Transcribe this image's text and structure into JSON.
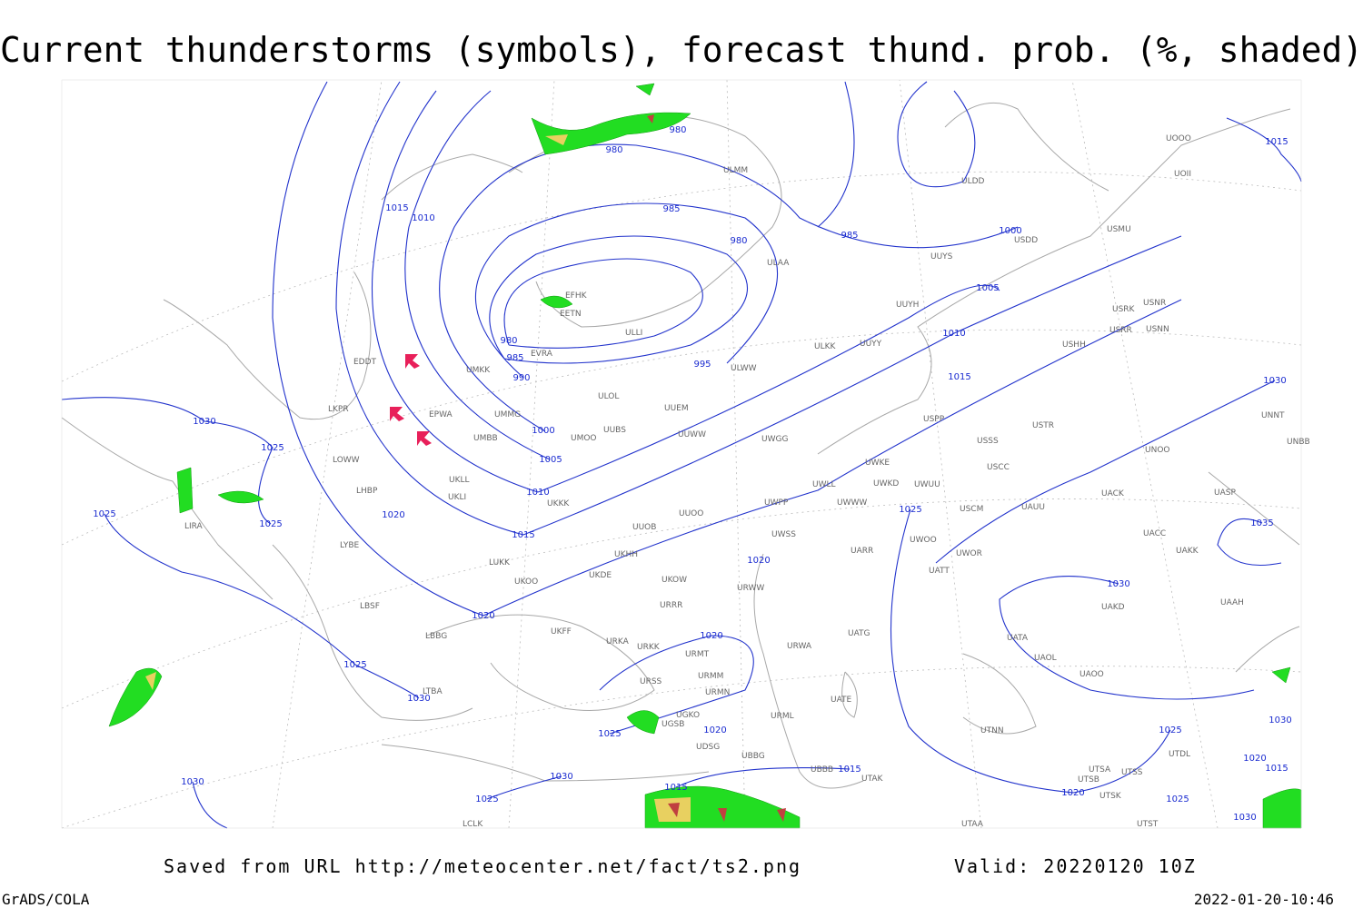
{
  "title": "Current thunderstorms (symbols), forecast thund. prob. (%, shaded)",
  "footer": {
    "saved": "Saved from URL http://meteocenter.net/fact/ts2.png",
    "valid": "Valid: 20220120 10Z",
    "software": "GrADS/COLA",
    "timestamp": "2022-01-20-10:46"
  },
  "map": {
    "isobar_labels": [
      "980",
      "985",
      "990",
      "995",
      "1000",
      "1005",
      "1010",
      "1015",
      "1020",
      "980",
      "980",
      "985",
      "980",
      "985",
      "1000",
      "1005",
      "1010",
      "1015",
      "1020",
      "1025",
      "1030",
      "1025",
      "1025",
      "1025",
      "1030",
      "1025",
      "1020",
      "1020",
      "1020",
      "1030",
      "1025",
      "1015",
      "1015",
      "1025",
      "1020",
      "1025",
      "1030",
      "1035",
      "1030",
      "1015",
      "1015",
      "1010",
      "1030",
      "1030",
      "1020",
      "1015",
      "1025",
      "1030"
    ],
    "stations": [
      "EFHK",
      "EETN",
      "ULLI",
      "EVRA",
      "ULOL",
      "EPWA",
      "UMMG",
      "UMBB",
      "UMOO",
      "UUBS",
      "UUEM",
      "UUWW",
      "UWGG",
      "UKLL",
      "UKLI",
      "UKKK",
      "UUOB",
      "UUOO",
      "UWPP",
      "UWSS",
      "URWW",
      "UKFF",
      "URKA",
      "URKK",
      "URMT",
      "URMM",
      "URSS",
      "URMN",
      "UGKO",
      "UGSB",
      "UDSG",
      "UBBB",
      "UBBG",
      "UATE",
      "UATG",
      "URWA",
      "URML",
      "UATA",
      "UAOL",
      "UAOO",
      "UAKD",
      "UAAH",
      "UACC",
      "UAKK",
      "UASP",
      "UACK",
      "UAUU",
      "USCM",
      "USCC",
      "USSS",
      "USTR",
      "USPP",
      "UNOO",
      "UNNT",
      "UNBB",
      "UOOO",
      "UOII",
      "ULDD",
      "USDD",
      "USMU",
      "UUYS",
      "UUYH",
      "UUYY",
      "ULKK",
      "ULWW",
      "ULAA",
      "ULMM",
      "USHH",
      "USRR",
      "USNN",
      "USRK",
      "USNR",
      "UWKE",
      "UWKD",
      "UWUU",
      "UWLL",
      "UWWW",
      "UWOO",
      "UWOR",
      "UATT",
      "UARR",
      "UTNN",
      "UTAA",
      "UTAK",
      "UTSA",
      "UTSS",
      "UTSB",
      "UTSK",
      "UTDL",
      "UTST",
      "LIRA",
      "LYBE",
      "LBSF",
      "LBBG",
      "LTBA",
      "LOWW",
      "LKPR",
      "LHBP",
      "EDDT",
      "LUKK",
      "UKOO",
      "UKDE",
      "UKHH",
      "UKOW",
      "URRR",
      "LCLK",
      "UMKK"
    ]
  }
}
